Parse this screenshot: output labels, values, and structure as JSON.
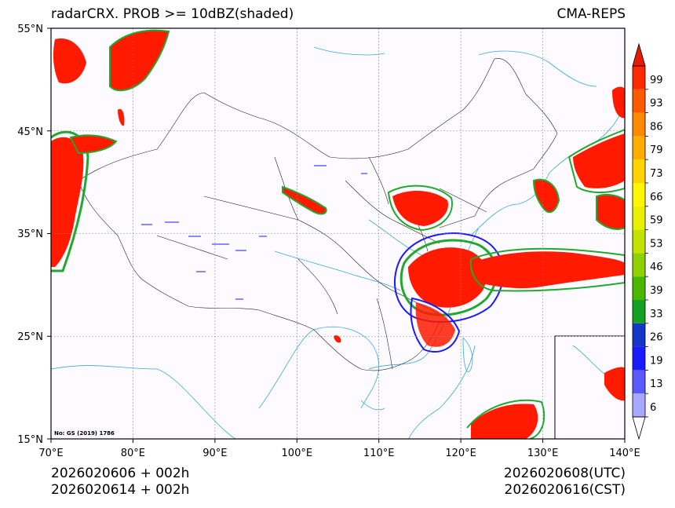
{
  "title": {
    "left": "radarCRX. PROB >= 10dBZ(shaded)",
    "right": "CMA-REPS"
  },
  "axes": {
    "lat_labels": [
      "55°N",
      "45°N",
      "35°N",
      "25°N",
      "15°N"
    ],
    "lon_labels": [
      "70°E",
      "80°E",
      "90°E",
      "100°E",
      "110°E",
      "120°E",
      "130°E",
      "140°E"
    ]
  },
  "colorbar": {
    "labels": [
      "99",
      "93",
      "86",
      "79",
      "73",
      "66",
      "59",
      "53",
      "46",
      "39",
      "33",
      "26",
      "19",
      "13",
      "6"
    ],
    "colors": [
      "#ff2a00",
      "#ff5a00",
      "#ff8a00",
      "#ffae00",
      "#ffd400",
      "#fff700",
      "#e8ef00",
      "#c3e200",
      "#8fd000",
      "#4ab800",
      "#14a020",
      "#1436c8",
      "#1a1aff",
      "#5a5aff",
      "#a8a8ff"
    ],
    "top_arrow_color": "#e81a00"
  },
  "stamp": "No: GS (2019) 1786",
  "footer": {
    "init_utc": "2026020606  +  002h",
    "init_cst": "2026020614  +  002h",
    "valid_utc": "2026020608(UTC)",
    "valid_cst": "2026020616(CST)"
  },
  "colors": {
    "high": "#ff1a00",
    "mid_green": "#22a830",
    "blue": "#1a1aff",
    "water": "#3aa8d8",
    "border": "#222222"
  }
}
